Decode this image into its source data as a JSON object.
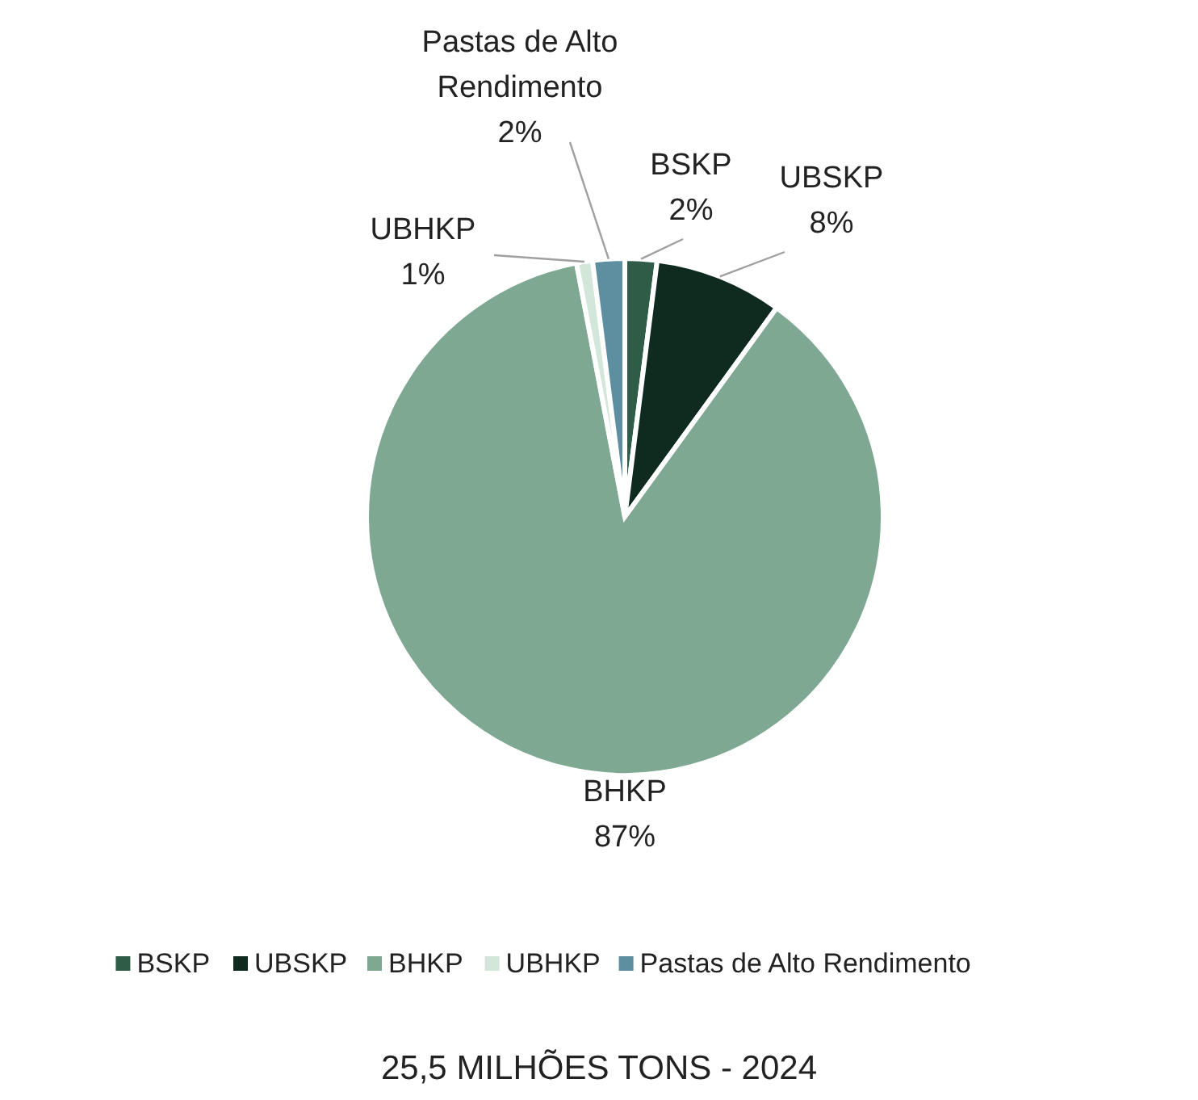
{
  "chart_data": {
    "type": "pie",
    "title": "25,5 MILHÕES TONS - 2024",
    "categories": [
      "BSKP",
      "UBSKP",
      "BHKP",
      "UBHKP",
      "Pastas de Alto Rendimento"
    ],
    "values": [
      2,
      8,
      87,
      1,
      2
    ],
    "colors": [
      "#2f5c47",
      "#0f2a1f",
      "#7ea891",
      "#d3e6da",
      "#5e8fa0"
    ],
    "value_labels": [
      "2%",
      "8%",
      "87%",
      "1%",
      "2%"
    ],
    "legend": "bottom"
  }
}
